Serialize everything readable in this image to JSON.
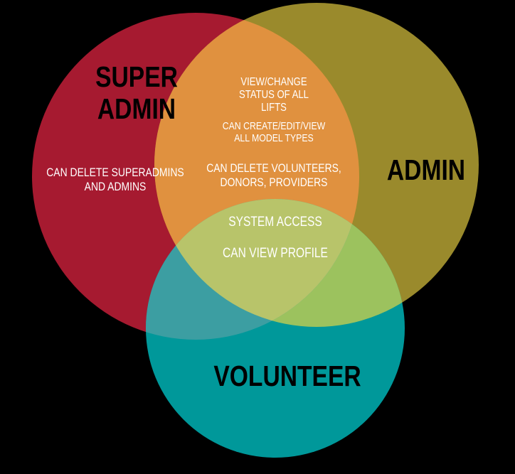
{
  "colors": {
    "background": "#000000",
    "super_admin": "#a61a30",
    "admin": "#9a8a2c",
    "volunteer": "#00989a",
    "super_admin_admin_overlap": "#e0913f",
    "all_overlap": "#b8c46a",
    "volunteer_admin_overlap": "#9cc25e",
    "volunteer_super_admin_overlap": "#3c9ea2"
  },
  "sets": {
    "super_admin": {
      "line1": "SUPER",
      "line2": "ADMIN"
    },
    "admin": {
      "label": "ADMIN"
    },
    "volunteer": {
      "label": "VOLUNTEER"
    }
  },
  "regions": {
    "super_admin_only": {
      "line1": "CAN DELETE SUPERADMINS",
      "line2": "AND ADMINS"
    },
    "super_admin_and_admin": {
      "p1_line1": "VIEW/CHANGE",
      "p1_line2": "STATUS OF ALL",
      "p1_line3": "LIFTS",
      "p2_line1": "CAN CREATE/EDIT/VIEW",
      "p2_line2": "ALL MODEL TYPES",
      "p3_line1": "CAN DELETE VOLUNTEERS,",
      "p3_line2": "DONORS, PROVIDERS"
    },
    "all_three": {
      "line1": "SYSTEM ACCESS",
      "line2": "CAN VIEW PROFILE"
    }
  }
}
